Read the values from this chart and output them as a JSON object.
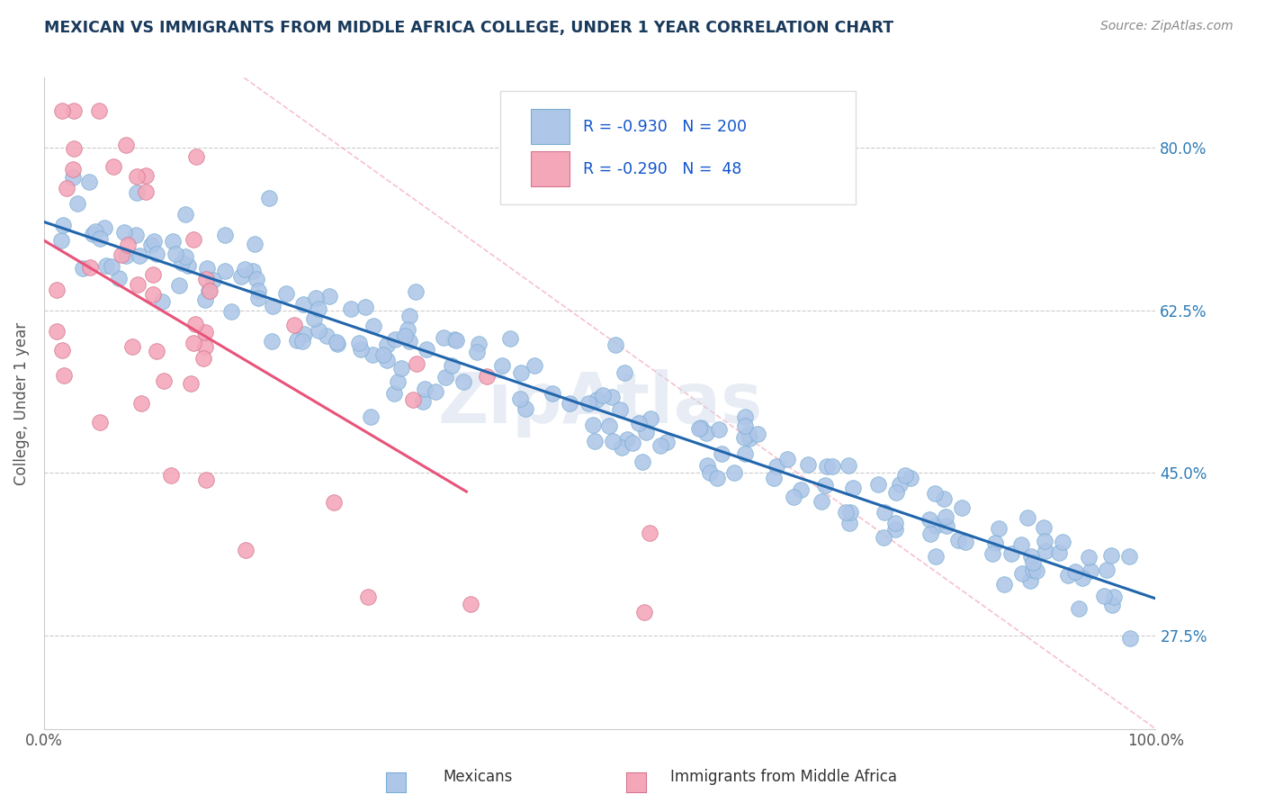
{
  "title": "MEXICAN VS IMMIGRANTS FROM MIDDLE AFRICA COLLEGE, UNDER 1 YEAR CORRELATION CHART",
  "source": "Source: ZipAtlas.com",
  "ylabel": "College, Under 1 year",
  "ytick_labels": [
    "27.5%",
    "45.0%",
    "62.5%",
    "80.0%"
  ],
  "ytick_values": [
    0.275,
    0.45,
    0.625,
    0.8
  ],
  "xmin": 0.0,
  "xmax": 1.0,
  "ymin": 0.175,
  "ymax": 0.875,
  "blue_R": -0.93,
  "blue_N": 200,
  "pink_R": -0.29,
  "pink_N": 48,
  "blue_color": "#aec6e8",
  "blue_line_color": "#2166ac",
  "pink_color": "#f4a7b9",
  "pink_line_color": "#e8537a",
  "blue_edge_color": "#7bafd4",
  "pink_edge_color": "#d4758f",
  "watermark": "ZipAtlas",
  "title_color": "#1a3a5c",
  "legend_R_color": "#1155cc",
  "grid_color": "#cccccc",
  "background_color": "#ffffff",
  "blue_line_start_x": 0.0,
  "blue_line_start_y": 0.72,
  "blue_line_end_x": 1.0,
  "blue_line_end_y": 0.315,
  "pink_line_start_x": 0.0,
  "pink_line_start_y": 0.7,
  "pink_line_end_x": 0.38,
  "pink_line_end_y": 0.43,
  "diag_line_color": "#f4a7b9",
  "diag_line_start_x": 0.18,
  "diag_line_start_y": 0.875,
  "diag_line_end_x": 1.0,
  "diag_line_end_y": 0.175,
  "right_tick_color": "#2c7bb6",
  "bottom_legend_blue_label": "Mexicans",
  "bottom_legend_pink_label": "Immigrants from Middle Africa"
}
